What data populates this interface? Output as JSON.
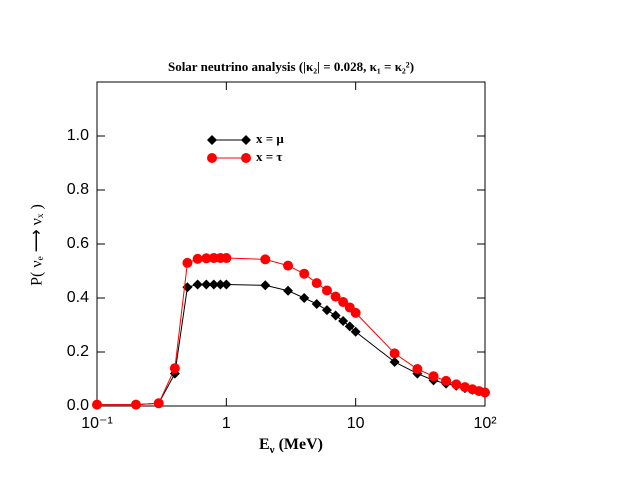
{
  "chart_data": {
    "type": "line",
    "title": "Solar neutrino analysis (|κ₂| = 0.028, κ₁ = κ₂²)",
    "xlabel": {
      "base": "E",
      "sub": "ν",
      "rest": " (MeV)"
    },
    "ylabel": "P( νₑ ⟶ νₓ )",
    "xscale": "log",
    "x": [
      0.1,
      0.2,
      0.3,
      0.4,
      0.5,
      0.6,
      0.7,
      0.8,
      0.9,
      1,
      2,
      3,
      4,
      5,
      6,
      7,
      8,
      9,
      10,
      20,
      30,
      40,
      50,
      60,
      70,
      80,
      90,
      100
    ],
    "series": [
      {
        "name": "x = μ",
        "color": "#000000",
        "marker": "diamond",
        "values": [
          0.005,
          0.005,
          0.01,
          0.12,
          0.44,
          0.45,
          0.45,
          0.45,
          0.45,
          0.45,
          0.447,
          0.427,
          0.4,
          0.378,
          0.355,
          0.335,
          0.315,
          0.295,
          0.275,
          0.163,
          0.12,
          0.095,
          0.083,
          0.075,
          0.066,
          0.06,
          0.055,
          0.048
        ]
      },
      {
        "name": "x = τ",
        "color": "#ff0000",
        "marker": "circle",
        "values": [
          0.005,
          0.005,
          0.01,
          0.14,
          0.53,
          0.545,
          0.547,
          0.548,
          0.548,
          0.548,
          0.543,
          0.52,
          0.49,
          0.455,
          0.428,
          0.405,
          0.385,
          0.365,
          0.345,
          0.195,
          0.137,
          0.11,
          0.093,
          0.08,
          0.07,
          0.062,
          0.055,
          0.05
        ]
      }
    ],
    "xlim": [
      0.1,
      100
    ],
    "xticks": [
      {
        "value": 0.1,
        "label": "10⁻¹"
      },
      1,
      10,
      {
        "value": 100,
        "label": "10²"
      }
    ],
    "ylim": [
      0,
      1.2
    ],
    "yticks": [
      {
        "value": 0,
        "label": "0.0"
      },
      {
        "value": 0.2,
        "label": "0.2"
      },
      {
        "value": 0.4,
        "label": "0.4"
      },
      {
        "value": 0.6,
        "label": "0.6"
      },
      {
        "value": 0.8,
        "label": "0.8"
      },
      {
        "value": 1,
        "label": "1.0"
      }
    ],
    "legend": "upper left"
  }
}
